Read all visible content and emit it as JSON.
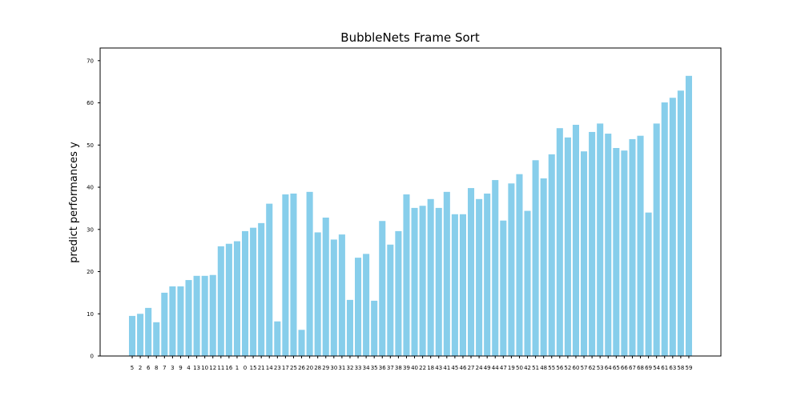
{
  "chart_data": {
    "type": "bar",
    "title": "BubbleNets Frame Sort",
    "xlabel": "",
    "ylabel": "predict performances y",
    "ylim": [
      0,
      73
    ],
    "yticks": [
      0,
      10,
      20,
      30,
      40,
      50,
      60,
      70
    ],
    "bar_color": "#87ceeb",
    "grid": false,
    "categories": [
      "5",
      "2",
      "6",
      "8",
      "7",
      "3",
      "9",
      "4",
      "13",
      "10",
      "12",
      "11",
      "16",
      "1",
      "0",
      "15",
      "21",
      "14",
      "23",
      "17",
      "25",
      "26",
      "20",
      "28",
      "29",
      "30",
      "31",
      "32",
      "33",
      "34",
      "35",
      "36",
      "37",
      "38",
      "39",
      "40",
      "22",
      "18",
      "43",
      "41",
      "45",
      "46",
      "27",
      "24",
      "49",
      "44",
      "47",
      "19",
      "50",
      "42",
      "51",
      "48",
      "55",
      "56",
      "52",
      "60",
      "57",
      "62",
      "53",
      "64",
      "65",
      "66",
      "67",
      "68",
      "69",
      "54",
      "61",
      "63",
      "58",
      "59"
    ],
    "values": [
      9.5,
      10,
      11.4,
      8,
      15,
      16.5,
      16.5,
      18,
      19,
      19,
      19.2,
      26,
      26.6,
      27.2,
      29.6,
      30.4,
      31.5,
      36.1,
      8.2,
      38.3,
      38.5,
      6.2,
      38.9,
      29.3,
      32.8,
      27.6,
      28.8,
      13.3,
      23.3,
      24.2,
      13.1,
      32,
      26.4,
      29.6,
      38.3,
      35.1,
      35.6,
      37.2,
      35.1,
      38.9,
      33.6,
      33.6,
      39.8,
      37.2,
      38.5,
      41.7,
      32.1,
      40.9,
      43.1,
      34.4,
      46.4,
      42.1,
      47.8,
      54,
      51.8,
      54.8,
      48.5,
      53.1,
      55.1,
      52.7,
      49.3,
      48.7,
      51.4,
      52.2,
      34,
      55.1,
      60.1,
      61.2,
      62.9,
      66.4
    ]
  }
}
